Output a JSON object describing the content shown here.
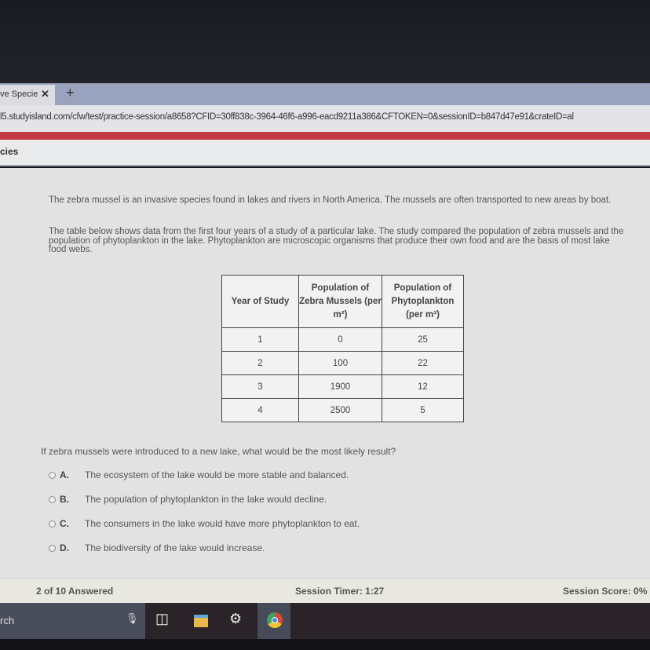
{
  "browser": {
    "tab_title": "ve Specie",
    "tab_close": "✕",
    "new_tab": "+",
    "url": "l5.studyisland.com/cfw/test/practice-session/a8658?CFID=30ff838c-3964-46f6-a996-eacd9211a386&CFTOKEN=0&sessionID=b847d47e91&crateID=al"
  },
  "header": {
    "title": "cies"
  },
  "passage": {
    "p1": "The zebra mussel is an invasive species found in lakes and rivers in North America. The mussels are often transported to new areas by boat.",
    "p2": "The table below shows data from the first four years of a study of a particular lake. The study compared the population of zebra mussels and the population of phytoplankton in the lake. Phytoplankton are microscopic organisms that produce their own food and are the basis of most lake food webs."
  },
  "table": {
    "headers": [
      "Year of Study",
      "Population of Zebra Mussels (per m²)",
      "Population of Phytoplankton (per m³)"
    ],
    "rows": [
      [
        "1",
        "0",
        "25"
      ],
      [
        "2",
        "100",
        "22"
      ],
      [
        "3",
        "1900",
        "12"
      ],
      [
        "4",
        "2500",
        "5"
      ]
    ]
  },
  "question": "If zebra mussels were introduced to a new lake, what would be the most likely result?",
  "options": [
    {
      "letter": "A.",
      "text": "The ecosystem of the lake would be more stable and balanced."
    },
    {
      "letter": "B.",
      "text": "The population of phytoplankton in the lake would decline."
    },
    {
      "letter": "C.",
      "text": "The consumers in the lake would have more phytoplankton to eat."
    },
    {
      "letter": "D.",
      "text": "The biodiversity of the lake would increase."
    }
  ],
  "status": {
    "answered": "2 of 10 Answered",
    "timer": "Session Timer: 1:27",
    "score": "Session Score: 0%"
  },
  "taskbar": {
    "search": "rch",
    "icons": [
      "microphone-icon",
      "task-view-icon",
      "file-explorer-icon",
      "settings-icon",
      "chrome-icon"
    ]
  }
}
